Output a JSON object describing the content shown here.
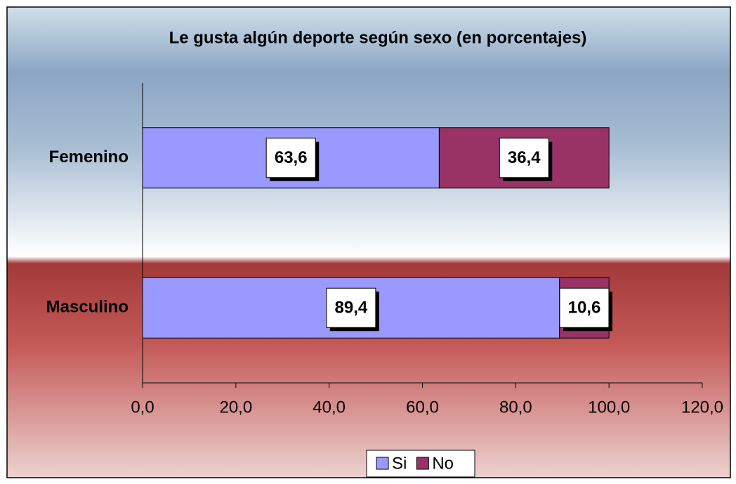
{
  "chart_data": {
    "type": "stacked-bar-horizontal",
    "title": "Le gusta algún deporte según sexo (en porcentajes)",
    "categories": [
      "Femenino",
      "Masculino"
    ],
    "series": [
      {
        "name": "Si",
        "color": "#9999ff",
        "values": [
          63.6,
          89.4
        ],
        "value_labels": [
          "63,6",
          "89,4"
        ]
      },
      {
        "name": "No",
        "color": "#993366",
        "values": [
          36.4,
          10.6
        ],
        "value_labels": [
          "36,4",
          "10,6"
        ]
      }
    ],
    "xlim": [
      0,
      120
    ],
    "xticks": [
      {
        "value": 0,
        "label": "0,0"
      },
      {
        "value": 20,
        "label": "20,0"
      },
      {
        "value": 40,
        "label": "40,0"
      },
      {
        "value": 60,
        "label": "60,0"
      },
      {
        "value": 80,
        "label": "80,0"
      },
      {
        "value": 100,
        "label": "100,0"
      },
      {
        "value": 120,
        "label": "120,0"
      }
    ],
    "legend": "bottom"
  }
}
